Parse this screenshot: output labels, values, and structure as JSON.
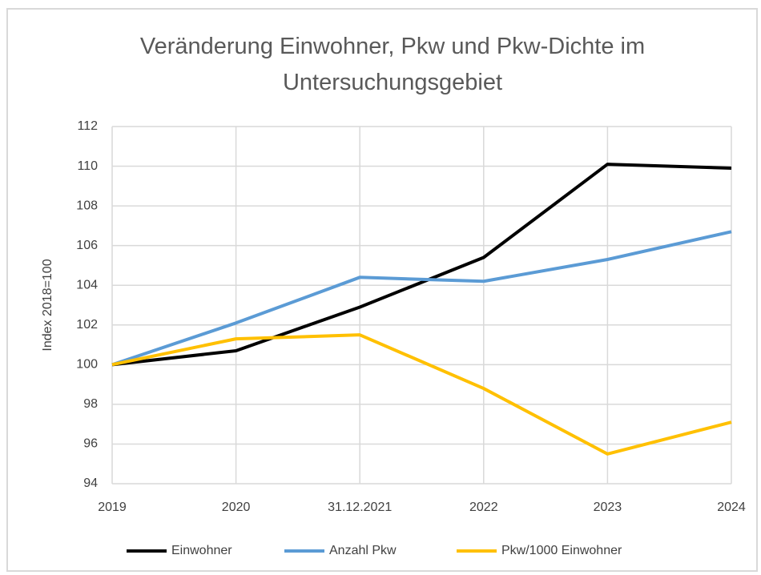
{
  "chart_data": {
    "type": "line",
    "title": "Veränderung Einwohner, Pkw und Pkw-Dichte im Untersuchungsgebiet",
    "y_label": "Index 2018=100",
    "categories": [
      "2019",
      "2020",
      "31.12.2021",
      "2022",
      "2023",
      "2024"
    ],
    "series": [
      {
        "name": "Einwohner",
        "color": "#000000",
        "values": [
          100,
          100.7,
          102.9,
          105.4,
          110.1,
          109.9
        ]
      },
      {
        "name": "Anzahl Pkw",
        "color": "#5b9bd5",
        "values": [
          100,
          102.1,
          104.4,
          104.2,
          105.3,
          106.7
        ]
      },
      {
        "name": "Pkw/1000 Einwohner",
        "color": "#ffc000",
        "values": [
          100,
          101.3,
          101.5,
          98.8,
          95.5,
          97.1
        ]
      }
    ],
    "ylim": [
      94,
      112
    ],
    "yticks": [
      94,
      96,
      98,
      100,
      102,
      104,
      106,
      108,
      110,
      112
    ],
    "grid": true,
    "legend": "bottom"
  }
}
